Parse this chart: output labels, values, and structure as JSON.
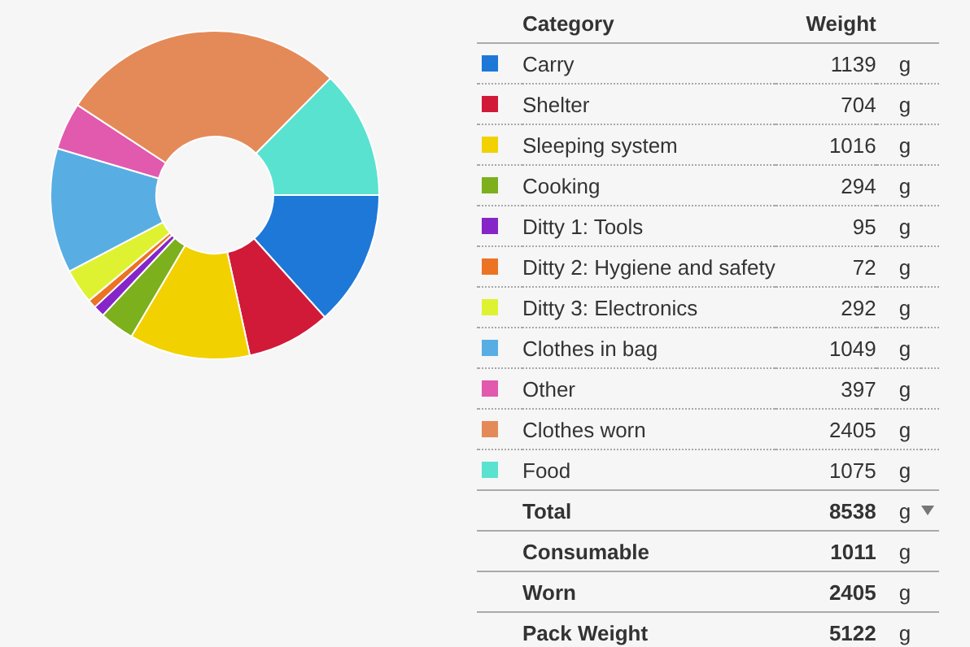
{
  "chart_data": {
    "type": "donut",
    "legend_title": "Category",
    "ylabel": "Weight",
    "legend": "right",
    "categories": [
      "Carry",
      "Shelter",
      "Sleeping system",
      "Cooking",
      "Ditty 1: Tools",
      "Ditty 2: Hygiene and safety",
      "Ditty 3: Electronics",
      "Clothes in bag",
      "Other",
      "Clothes worn",
      "Food"
    ],
    "values": [
      1139,
      704,
      1016,
      294,
      95,
      72,
      292,
      1049,
      397,
      2405,
      1075
    ],
    "value_labels": [
      "1139 g",
      "704 g",
      "1016 g",
      "294 g",
      "95 g",
      "72 g",
      "292 g",
      "1049 g",
      "397 g",
      "2405 g",
      "1075 g"
    ],
    "colors": [
      "#1e78d7",
      "#d11a38",
      "#f2d100",
      "#7cb01c",
      "#8625c8",
      "#ec7323",
      "#dff231",
      "#58aee3",
      "#e15aad",
      "#e48a58",
      "#59e2d0"
    ],
    "annotations": [
      "Total 8538 g",
      "Consumable 1011 g",
      "Worn 2405 g",
      "Pack Weight 5122 g"
    ]
  }
}
